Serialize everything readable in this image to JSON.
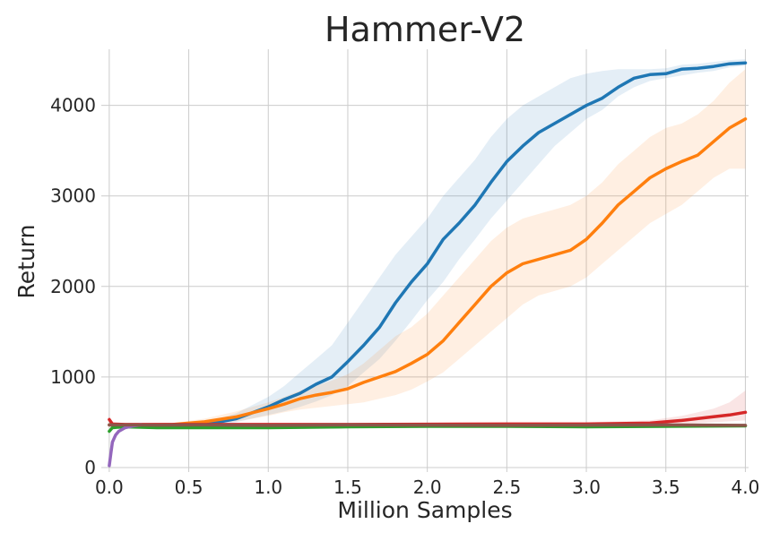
{
  "chart_data": {
    "type": "line",
    "title": "Hammer-V2",
    "xlabel": "Million Samples",
    "ylabel": "Return",
    "xlim": [
      -0.05,
      4.02
    ],
    "ylim": [
      -50,
      4620
    ],
    "xticks": [
      0.0,
      0.5,
      1.0,
      1.5,
      2.0,
      2.5,
      3.0,
      3.5,
      4.0
    ],
    "xtick_labels": [
      "0.0",
      "0.5",
      "1.0",
      "1.5",
      "2.0",
      "2.5",
      "3.0",
      "3.5",
      "4.0"
    ],
    "yticks": [
      0,
      1000,
      2000,
      3000,
      4000
    ],
    "ytick_labels": [
      "0",
      "1000",
      "2000",
      "3000",
      "4000"
    ],
    "grid": true,
    "legend": "none",
    "series": [
      {
        "color": "#1f77b4",
        "x": [
          0.0,
          0.2,
          0.4,
          0.6,
          0.8,
          1.0,
          1.1,
          1.2,
          1.3,
          1.4,
          1.5,
          1.6,
          1.7,
          1.8,
          1.9,
          2.0,
          2.1,
          2.2,
          2.3,
          2.4,
          2.5,
          2.6,
          2.7,
          2.8,
          2.9,
          3.0,
          3.1,
          3.2,
          3.3,
          3.4,
          3.5,
          3.6,
          3.7,
          3.8,
          3.9,
          4.0
        ],
        "y": [
          470,
          465,
          462,
          470,
          540,
          670,
          750,
          820,
          920,
          1000,
          1170,
          1350,
          1550,
          1820,
          2050,
          2250,
          2520,
          2700,
          2900,
          3150,
          3380,
          3550,
          3700,
          3800,
          3900,
          4000,
          4080,
          4200,
          4300,
          4340,
          4350,
          4400,
          4410,
          4430,
          4460,
          4470
        ],
        "lower": [
          470,
          460,
          455,
          460,
          500,
          580,
          620,
          670,
          730,
          800,
          900,
          1050,
          1200,
          1400,
          1620,
          1850,
          2050,
          2300,
          2520,
          2750,
          2950,
          3150,
          3350,
          3550,
          3700,
          3850,
          3950,
          4100,
          4200,
          4270,
          4300,
          4330,
          4360,
          4380,
          4420,
          4440
        ],
        "upper": [
          475,
          470,
          470,
          490,
          600,
          780,
          900,
          1050,
          1200,
          1350,
          1600,
          1850,
          2100,
          2350,
          2550,
          2750,
          3000,
          3200,
          3400,
          3650,
          3850,
          4000,
          4100,
          4200,
          4300,
          4350,
          4380,
          4400,
          4400,
          4400,
          4410,
          4450,
          4460,
          4480,
          4500,
          4510
        ]
      },
      {
        "color": "#ff7f0e",
        "x": [
          0.0,
          0.2,
          0.4,
          0.6,
          0.8,
          1.0,
          1.1,
          1.2,
          1.3,
          1.4,
          1.5,
          1.6,
          1.7,
          1.8,
          1.9,
          2.0,
          2.1,
          2.2,
          2.3,
          2.4,
          2.5,
          2.6,
          2.7,
          2.8,
          2.9,
          3.0,
          3.1,
          3.2,
          3.3,
          3.4,
          3.5,
          3.6,
          3.7,
          3.8,
          3.9,
          4.0
        ],
        "y": [
          470,
          470,
          475,
          505,
          560,
          650,
          700,
          760,
          800,
          830,
          870,
          940,
          1000,
          1060,
          1150,
          1250,
          1400,
          1600,
          1800,
          2000,
          2150,
          2250,
          2300,
          2350,
          2400,
          2520,
          2700,
          2900,
          3050,
          3200,
          3300,
          3380,
          3450,
          3600,
          3750,
          3850
        ],
        "lower": [
          470,
          465,
          465,
          480,
          510,
          570,
          610,
          640,
          660,
          680,
          700,
          720,
          760,
          800,
          860,
          950,
          1050,
          1200,
          1350,
          1500,
          1650,
          1800,
          1900,
          1950,
          2000,
          2100,
          2250,
          2400,
          2550,
          2700,
          2800,
          2900,
          3050,
          3200,
          3300,
          3300
        ],
        "upper": [
          475,
          480,
          490,
          540,
          620,
          720,
          780,
          850,
          900,
          960,
          1030,
          1150,
          1300,
          1450,
          1550,
          1700,
          1900,
          2100,
          2300,
          2500,
          2650,
          2750,
          2800,
          2850,
          2900,
          3000,
          3150,
          3350,
          3500,
          3650,
          3750,
          3800,
          3900,
          4050,
          4250,
          4400
        ]
      },
      {
        "color": "#2ca02c",
        "x": [
          0.0,
          0.02,
          0.05,
          0.1,
          0.3,
          0.6,
          1.0,
          1.5,
          2.0,
          2.5,
          3.0,
          3.5,
          4.0
        ],
        "y": [
          400,
          440,
          445,
          450,
          440,
          440,
          440,
          450,
          455,
          455,
          450,
          455,
          460
        ],
        "lower": [
          380,
          420,
          425,
          430,
          425,
          425,
          425,
          435,
          440,
          440,
          435,
          440,
          445
        ],
        "upper": [
          420,
          460,
          465,
          470,
          455,
          455,
          455,
          465,
          470,
          470,
          465,
          470,
          475
        ]
      },
      {
        "color": "#d62728",
        "x": [
          0.0,
          0.02,
          0.1,
          0.5,
          1.0,
          1.5,
          2.0,
          2.5,
          3.0,
          3.4,
          3.6,
          3.8,
          3.9,
          4.0
        ],
        "y": [
          530,
          480,
          475,
          475,
          475,
          475,
          478,
          480,
          480,
          490,
          520,
          560,
          580,
          610
        ],
        "lower": [
          500,
          460,
          460,
          460,
          460,
          460,
          462,
          462,
          462,
          470,
          480,
          500,
          510,
          520
        ],
        "upper": [
          560,
          500,
          490,
          490,
          490,
          490,
          495,
          500,
          500,
          520,
          570,
          650,
          720,
          850
        ]
      },
      {
        "color": "#9467bd",
        "x": [
          0.0,
          0.01,
          0.02,
          0.04,
          0.06,
          0.08,
          0.1,
          0.15,
          0.2
        ],
        "y": [
          20,
          150,
          280,
          360,
          400,
          420,
          440,
          460,
          470
        ],
        "lower": [
          10,
          120,
          250,
          330,
          380,
          405,
          425,
          450,
          462
        ],
        "upper": [
          30,
          180,
          310,
          390,
          420,
          435,
          455,
          470,
          478
        ]
      },
      {
        "color": "#8c564b",
        "x": [
          0.0,
          0.1,
          0.3,
          0.6,
          1.0,
          1.5,
          2.0,
          2.5,
          3.0,
          3.5,
          4.0
        ],
        "y": [
          470,
          470,
          468,
          470,
          465,
          470,
          468,
          465,
          468,
          470,
          465
        ],
        "lower": [
          455,
          455,
          455,
          455,
          452,
          455,
          455,
          452,
          455,
          455,
          452
        ],
        "upper": [
          485,
          485,
          482,
          485,
          480,
          485,
          482,
          480,
          482,
          485,
          480
        ]
      }
    ]
  }
}
